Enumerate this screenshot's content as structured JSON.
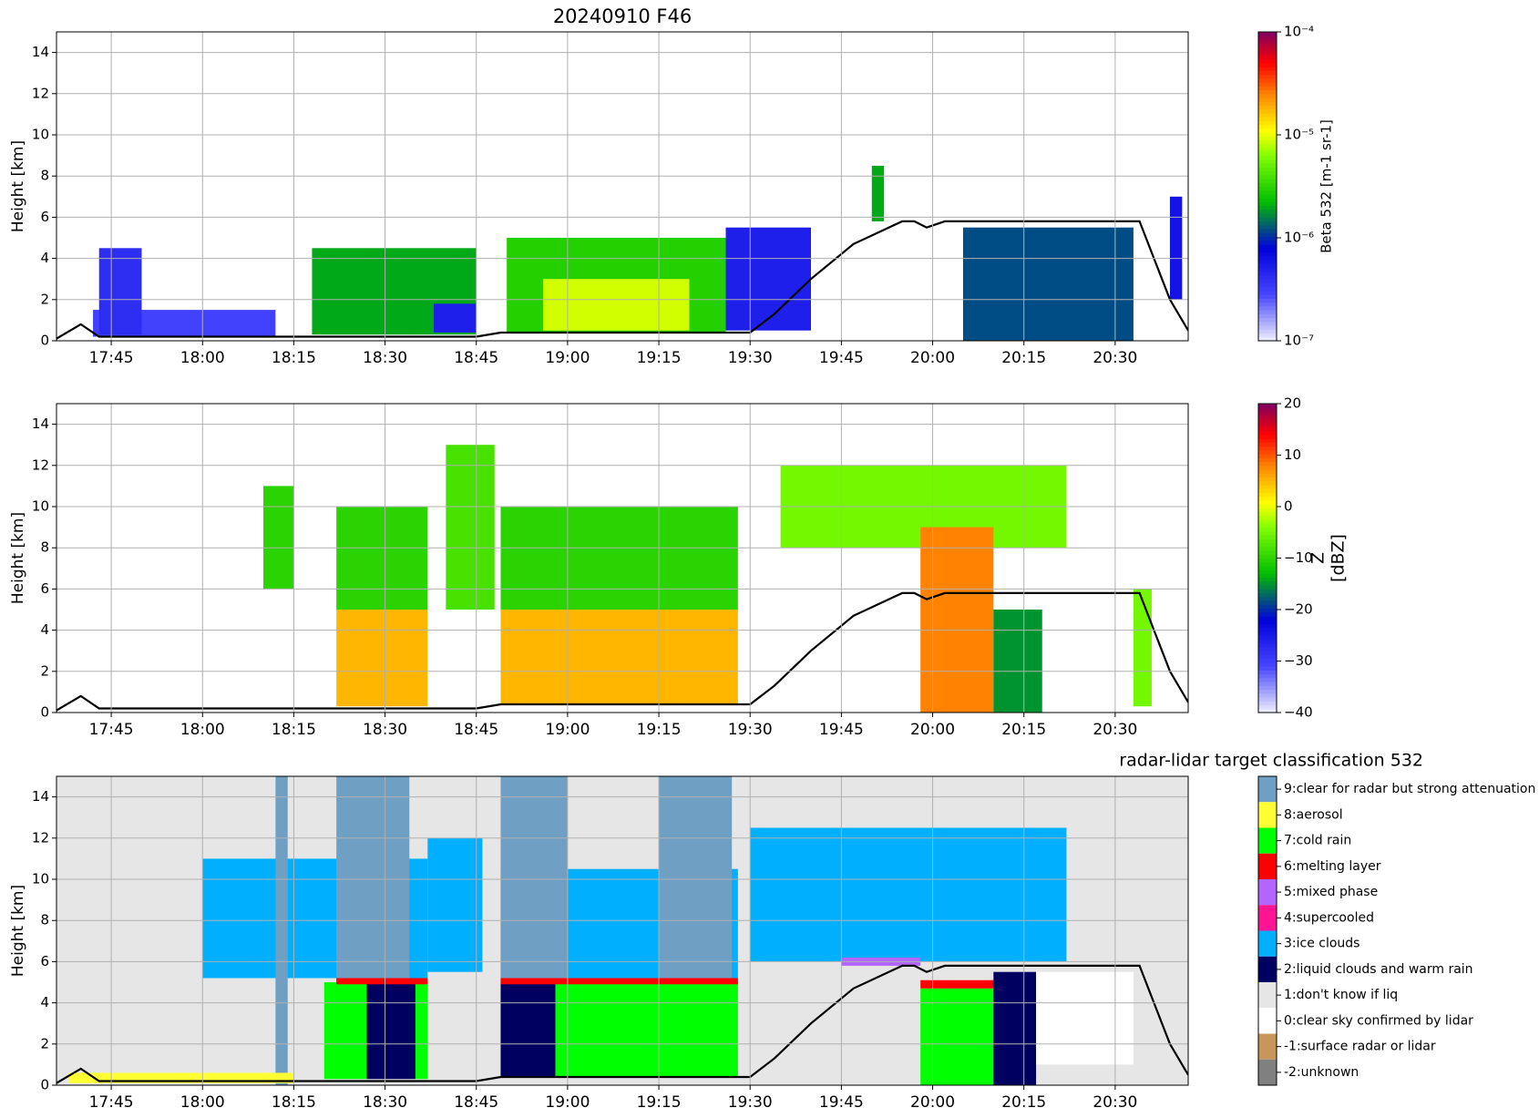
{
  "chart_data": [
    {
      "type": "heatmap",
      "title": "20240910 F46",
      "ylabel": "Height [km]",
      "xlim": [
        "17:36",
        "20:42"
      ],
      "xticks": [
        "17:45",
        "18:00",
        "18:15",
        "18:30",
        "18:45",
        "19:00",
        "19:15",
        "19:30",
        "19:45",
        "20:00",
        "20:15",
        "20:30"
      ],
      "ylim": [
        0,
        15
      ],
      "yticks": [
        0,
        2,
        4,
        6,
        8,
        10,
        12,
        14
      ],
      "grid": true,
      "colorbar": {
        "label": "Beta 532 [m-1 sr-1]",
        "log": true,
        "lim": [
          1e-07,
          0.0001
        ],
        "ticks": [
          {
            "value": 1e-07,
            "label": "10⁻⁷"
          },
          {
            "value": 1e-06,
            "label": "10⁻⁶"
          },
          {
            "value": 1e-05,
            "label": "10⁻⁵"
          },
          {
            "value": 0.0001,
            "label": "10⁻⁴"
          }
        ]
      },
      "blocks": [
        [
          "17:42",
          "18:12",
          0.2,
          1.5,
          3e-07
        ],
        [
          "17:43",
          "17:50",
          0.3,
          4.5,
          4e-07
        ],
        [
          "18:18",
          "18:45",
          0.3,
          4.5,
          2e-06
        ],
        [
          "18:38",
          "18:45",
          0.4,
          1.8,
          5e-07
        ],
        [
          "18:50",
          "19:26",
          0.4,
          5.0,
          3e-06
        ],
        [
          "18:56",
          "19:20",
          0.5,
          3.0,
          9e-06
        ],
        [
          "19:26",
          "19:40",
          0.5,
          5.5,
          5e-07
        ],
        [
          "19:50",
          "19:52",
          5.8,
          8.5,
          2e-06
        ],
        [
          "20:05",
          "20:33",
          0.0,
          5.5,
          1.2e-06
        ],
        [
          "20:39",
          "20:41",
          2.0,
          7.0,
          6e-07
        ]
      ],
      "line": {
        "x": [
          "17:36",
          "17:40",
          "17:43",
          "18:45",
          "18:49",
          "19:30",
          "19:34",
          "19:40",
          "19:47",
          "19:55",
          "19:57",
          "19:59",
          "20:02",
          "20:34",
          "20:39",
          "20:42"
        ],
        "y": [
          0.1,
          0.8,
          0.2,
          0.2,
          0.4,
          0.4,
          1.3,
          3.0,
          4.7,
          5.8,
          5.8,
          5.5,
          5.8,
          5.8,
          2.0,
          0.5
        ],
        "color": "#000000"
      }
    },
    {
      "type": "heatmap",
      "ylabel": "Height [km]",
      "xlim": [
        "17:36",
        "20:42"
      ],
      "xticks": [
        "17:45",
        "18:00",
        "18:15",
        "18:30",
        "18:45",
        "19:00",
        "19:15",
        "19:30",
        "19:45",
        "20:00",
        "20:15",
        "20:30"
      ],
      "ylim": [
        0,
        15
      ],
      "yticks": [
        0,
        2,
        4,
        6,
        8,
        10,
        12,
        14
      ],
      "grid": true,
      "colorbar": {
        "label": [
          "Z",
          "[dBZ]"
        ],
        "log": false,
        "lim": [
          -40,
          20
        ],
        "ticks": [
          {
            "value": -40,
            "label": "−40"
          },
          {
            "value": -30,
            "label": "−30"
          },
          {
            "value": -20,
            "label": "−20"
          },
          {
            "value": -10,
            "label": "−10"
          },
          0,
          10,
          20
        ]
      },
      "blocks": [
        [
          "18:10",
          "18:15",
          6.0,
          11.0,
          -10
        ],
        [
          "18:22",
          "18:37",
          5.0,
          10.0,
          -10
        ],
        [
          "18:22",
          "18:37",
          0.3,
          5.0,
          5
        ],
        [
          "18:40",
          "18:48",
          5.0,
          13.0,
          -8
        ],
        [
          "18:49",
          "19:28",
          5.0,
          10.0,
          -10
        ],
        [
          "18:49",
          "19:28",
          0.4,
          5.0,
          5
        ],
        [
          "19:35",
          "20:22",
          8.0,
          12.0,
          -5
        ],
        [
          "19:58",
          "20:10",
          0.0,
          9.0,
          8
        ],
        [
          "20:10",
          "20:18",
          0.0,
          5.0,
          -15
        ],
        [
          "20:33",
          "20:36",
          0.3,
          6.0,
          -5
        ]
      ],
      "line": {
        "x": [
          "17:36",
          "17:40",
          "17:43",
          "18:45",
          "18:49",
          "19:30",
          "19:34",
          "19:40",
          "19:47",
          "19:55",
          "19:57",
          "19:59",
          "20:02",
          "20:34",
          "20:39",
          "20:42"
        ],
        "y": [
          0.1,
          0.8,
          0.2,
          0.2,
          0.4,
          0.4,
          1.3,
          3.0,
          4.7,
          5.8,
          5.8,
          5.5,
          5.8,
          5.8,
          2.0,
          0.5
        ],
        "color": "#000000"
      }
    },
    {
      "type": "classification",
      "title": "radar-lidar target classification 532",
      "ylabel": "Height [km]",
      "xlim": [
        "17:36",
        "20:42"
      ],
      "xticks": [
        "17:45",
        "18:00",
        "18:15",
        "18:30",
        "18:45",
        "19:00",
        "19:15",
        "19:30",
        "19:45",
        "20:00",
        "20:15",
        "20:30"
      ],
      "ylim": [
        0,
        15
      ],
      "yticks": [
        0,
        2,
        4,
        6,
        8,
        10,
        12,
        14
      ],
      "grid": true,
      "legend": [
        {
          "value": 9,
          "label": "9:clear for radar but strong attenuation",
          "color": "#6fa0c4"
        },
        {
          "value": 8,
          "label": "8:aerosol",
          "color": "#ffff33"
        },
        {
          "value": 7,
          "label": "7:cold rain",
          "color": "#00ff00"
        },
        {
          "value": 6,
          "label": "6:melting layer",
          "color": "#ff0000"
        },
        {
          "value": 5,
          "label": "5:mixed phase",
          "color": "#b366ff"
        },
        {
          "value": 4,
          "label": "4:supercooled",
          "color": "#ff1493"
        },
        {
          "value": 3,
          "label": "3:ice clouds",
          "color": "#00b0ff"
        },
        {
          "value": 2,
          "label": "2:liquid clouds and warm rain",
          "color": "#000060"
        },
        {
          "value": 1,
          "label": "1:don't know if liq",
          "color": "#e6e6e6"
        },
        {
          "value": 0,
          "label": "0:clear sky confirmed by lidar",
          "color": "#ffffff"
        },
        {
          "value": -1,
          "label": "-1:surface radar or lidar",
          "color": "#c8965a"
        },
        {
          "value": -2,
          "label": "-2:unknown",
          "color": "#808080"
        }
      ],
      "blocks": [
        [
          "17:36",
          "20:42",
          0.0,
          15.0,
          1
        ],
        [
          "18:00",
          "18:37",
          5.2,
          11.0,
          3
        ],
        [
          "18:37",
          "18:46",
          5.5,
          12.0,
          3
        ],
        [
          "18:49",
          "19:28",
          5.2,
          10.5,
          3
        ],
        [
          "19:30",
          "20:22",
          6.0,
          12.5,
          3
        ],
        [
          "18:12",
          "18:14",
          0.0,
          15.0,
          9
        ],
        [
          "18:22",
          "18:34",
          5.0,
          15.0,
          9
        ],
        [
          "18:49",
          "19:00",
          5.0,
          15.0,
          9
        ],
        [
          "19:15",
          "19:27",
          5.0,
          15.0,
          9
        ],
        [
          "17:38",
          "18:15",
          0.1,
          0.6,
          8
        ],
        [
          "18:20",
          "18:27",
          0.3,
          5.0,
          7
        ],
        [
          "18:27",
          "18:35",
          0.3,
          5.0,
          2
        ],
        [
          "18:35",
          "18:37",
          0.3,
          5.0,
          7
        ],
        [
          "18:49",
          "18:58",
          0.4,
          5.0,
          2
        ],
        [
          "18:58",
          "19:28",
          0.4,
          5.0,
          7
        ],
        [
          "18:22",
          "18:37",
          4.9,
          5.2,
          6
        ],
        [
          "18:49",
          "19:28",
          4.9,
          5.2,
          6
        ],
        [
          "19:45",
          "19:58",
          5.8,
          6.2,
          5
        ],
        [
          "19:58",
          "20:10",
          0.0,
          4.7,
          7
        ],
        [
          "19:58",
          "20:10",
          4.7,
          5.1,
          6
        ],
        [
          "20:10",
          "20:17",
          0.0,
          5.5,
          2
        ],
        [
          "20:17",
          "20:33",
          1.0,
          5.5,
          0
        ]
      ],
      "line": {
        "x": [
          "17:36",
          "17:40",
          "17:43",
          "18:45",
          "18:49",
          "19:30",
          "19:34",
          "19:40",
          "19:47",
          "19:55",
          "19:57",
          "19:59",
          "20:02",
          "20:34",
          "20:39",
          "20:42"
        ],
        "y": [
          0.1,
          0.8,
          0.2,
          0.2,
          0.4,
          0.4,
          1.3,
          3.0,
          4.7,
          5.8,
          5.8,
          5.5,
          5.8,
          5.8,
          2.0,
          0.5
        ],
        "color": "#000000"
      }
    }
  ]
}
